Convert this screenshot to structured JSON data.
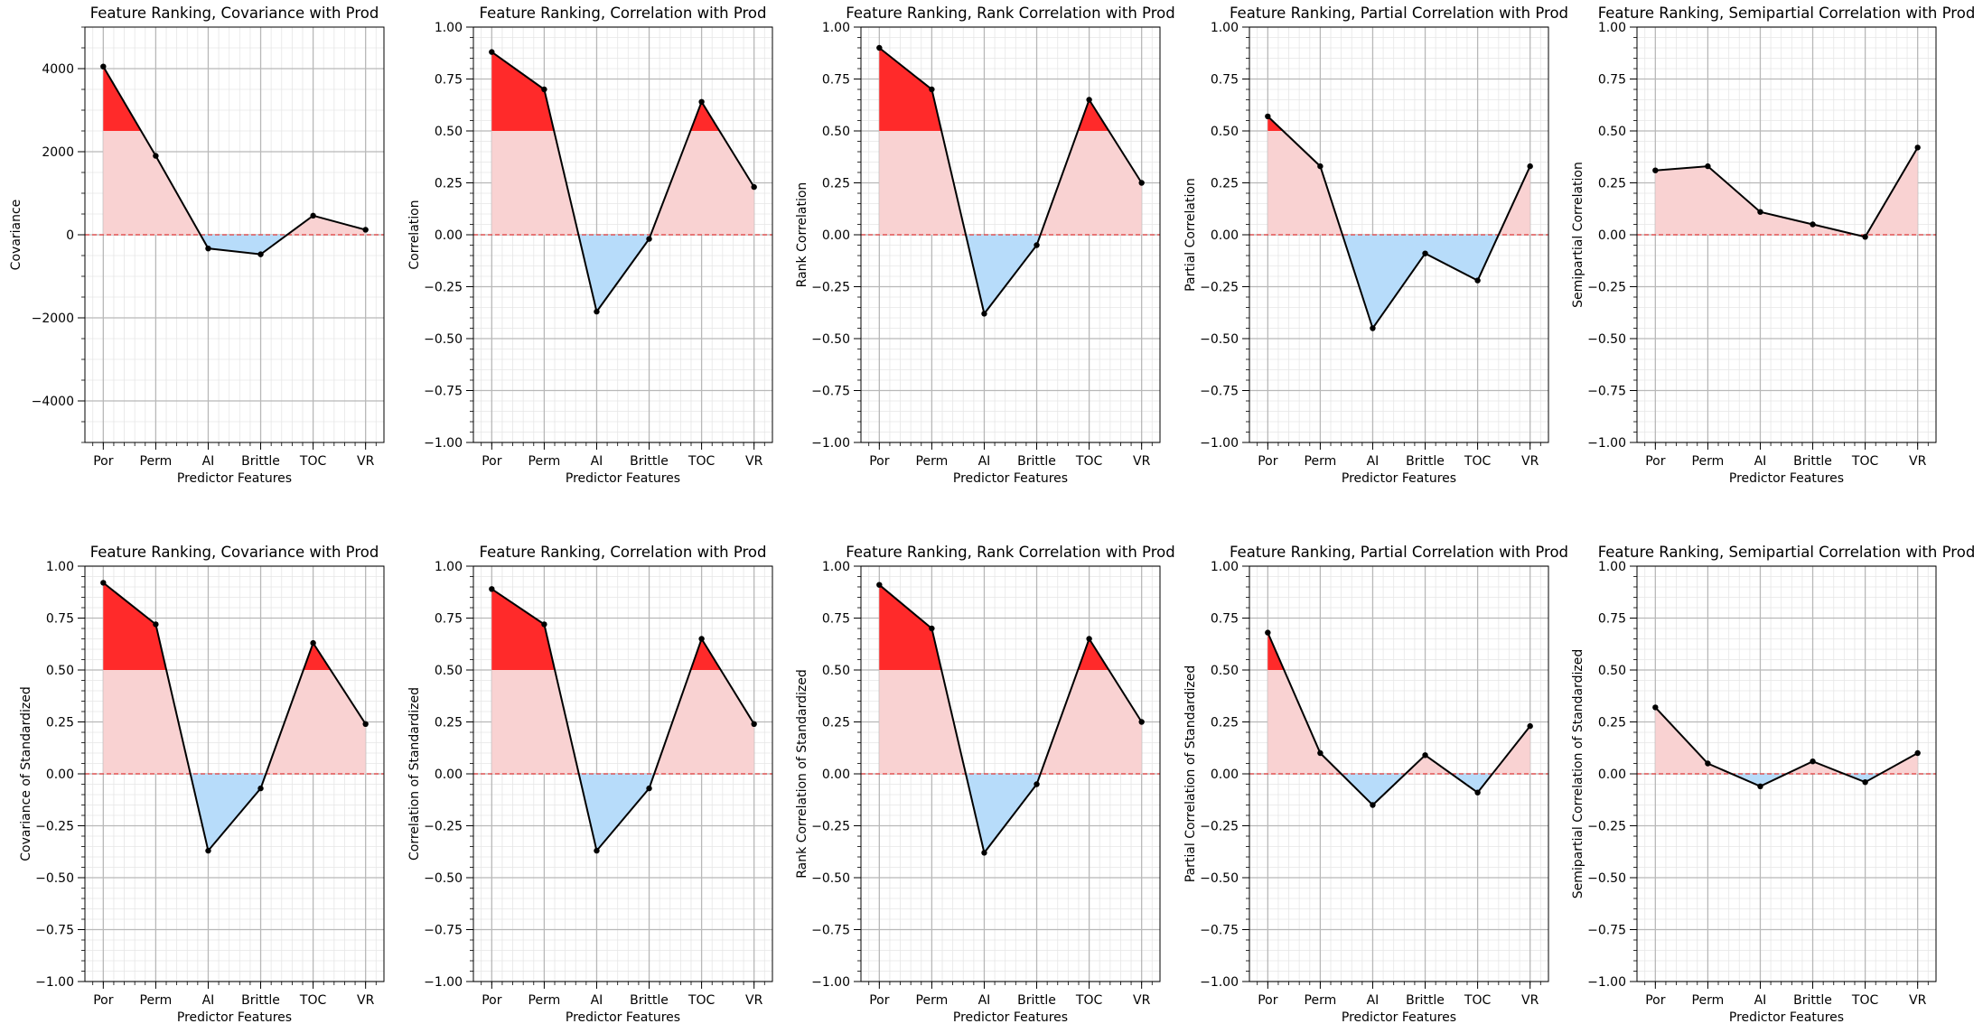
{
  "colors": {
    "strong_fill": "#ff2a2a",
    "weak_fill": "#f9d2d2",
    "negative_fill": "#b7dcfa",
    "line": "#000000",
    "zero_line": "#e03a3a",
    "major_grid": "#b8b8b8",
    "minor_grid": "#e6e6e6"
  },
  "chart_data": [
    {
      "type": "line",
      "title": "Feature Ranking, Covariance with Prod",
      "xlabel": "Predictor Features",
      "ylabel": "Covariance",
      "categories": [
        "Por",
        "Perm",
        "AI",
        "Brittle",
        "TOC",
        "VR"
      ],
      "values": [
        4050,
        1900,
        -330,
        -470,
        460,
        120
      ],
      "ylim": [
        -5000,
        5000
      ],
      "yticks": [
        -4000,
        -2000,
        0,
        2000,
        4000
      ],
      "ytick_labels": [
        "−4000",
        "−2000",
        "0",
        "2000",
        "4000"
      ],
      "minor_step": 500,
      "strong_threshold": 2500
    },
    {
      "type": "line",
      "title": "Feature Ranking, Correlation with Prod",
      "xlabel": "Predictor Features",
      "ylabel": "Correlation",
      "categories": [
        "Por",
        "Perm",
        "AI",
        "Brittle",
        "TOC",
        "VR"
      ],
      "values": [
        0.88,
        0.7,
        -0.37,
        -0.02,
        0.64,
        0.23
      ],
      "ylim": [
        -1,
        1
      ],
      "yticks": [
        -1,
        -0.75,
        -0.5,
        -0.25,
        0,
        0.25,
        0.5,
        0.75,
        1
      ],
      "ytick_labels": [
        "−1.00",
        "−0.75",
        "−0.50",
        "−0.25",
        "0.00",
        "0.25",
        "0.50",
        "0.75",
        "1.00"
      ],
      "minor_step": 0.05,
      "strong_threshold": 0.5
    },
    {
      "type": "line",
      "title": "Feature Ranking, Rank Correlation with Prod",
      "xlabel": "Predictor Features",
      "ylabel": "Rank Correlation",
      "categories": [
        "Por",
        "Perm",
        "AI",
        "Brittle",
        "TOC",
        "VR"
      ],
      "values": [
        0.9,
        0.7,
        -0.38,
        -0.05,
        0.65,
        0.25
      ],
      "ylim": [
        -1,
        1
      ],
      "yticks": [
        -1,
        -0.75,
        -0.5,
        -0.25,
        0,
        0.25,
        0.5,
        0.75,
        1
      ],
      "ytick_labels": [
        "−1.00",
        "−0.75",
        "−0.50",
        "−0.25",
        "0.00",
        "0.25",
        "0.50",
        "0.75",
        "1.00"
      ],
      "minor_step": 0.05,
      "strong_threshold": 0.5
    },
    {
      "type": "line",
      "title": "Feature Ranking, Partial Correlation with Prod",
      "xlabel": "Predictor Features",
      "ylabel": "Partial Correlation",
      "categories": [
        "Por",
        "Perm",
        "AI",
        "Brittle",
        "TOC",
        "VR"
      ],
      "values": [
        0.57,
        0.33,
        -0.45,
        -0.09,
        -0.22,
        0.33
      ],
      "ylim": [
        -1,
        1
      ],
      "yticks": [
        -1,
        -0.75,
        -0.5,
        -0.25,
        0,
        0.25,
        0.5,
        0.75,
        1
      ],
      "ytick_labels": [
        "−1.00",
        "−0.75",
        "−0.50",
        "−0.25",
        "0.00",
        "0.25",
        "0.50",
        "0.75",
        "1.00"
      ],
      "minor_step": 0.05,
      "strong_threshold": 0.5
    },
    {
      "type": "line",
      "title": "Feature Ranking, Semipartial Correlation with Prod",
      "xlabel": "Predictor Features",
      "ylabel": "Semipartial Correlation",
      "categories": [
        "Por",
        "Perm",
        "AI",
        "Brittle",
        "TOC",
        "VR"
      ],
      "values": [
        0.31,
        0.33,
        0.11,
        0.05,
        -0.01,
        0.42
      ],
      "ylim": [
        -1,
        1
      ],
      "yticks": [
        -1,
        -0.75,
        -0.5,
        -0.25,
        0,
        0.25,
        0.5,
        0.75,
        1
      ],
      "ytick_labels": [
        "−1.00",
        "−0.75",
        "−0.50",
        "−0.25",
        "0.00",
        "0.25",
        "0.50",
        "0.75",
        "1.00"
      ],
      "minor_step": 0.05,
      "strong_threshold": 0.5
    },
    {
      "type": "line",
      "title": "Feature Ranking, Covariance with Prod",
      "xlabel": "Predictor Features",
      "ylabel": "Covariance of Standardized",
      "categories": [
        "Por",
        "Perm",
        "AI",
        "Brittle",
        "TOC",
        "VR"
      ],
      "values": [
        0.92,
        0.72,
        -0.37,
        -0.07,
        0.63,
        0.24
      ],
      "ylim": [
        -1,
        1
      ],
      "yticks": [
        -1,
        -0.75,
        -0.5,
        -0.25,
        0,
        0.25,
        0.5,
        0.75,
        1
      ],
      "ytick_labels": [
        "−1.00",
        "−0.75",
        "−0.50",
        "−0.25",
        "0.00",
        "0.25",
        "0.50",
        "0.75",
        "1.00"
      ],
      "minor_step": 0.05,
      "strong_threshold": 0.5
    },
    {
      "type": "line",
      "title": "Feature Ranking, Correlation with Prod",
      "xlabel": "Predictor Features",
      "ylabel": "Correlation of Standardized",
      "categories": [
        "Por",
        "Perm",
        "AI",
        "Brittle",
        "TOC",
        "VR"
      ],
      "values": [
        0.89,
        0.72,
        -0.37,
        -0.07,
        0.65,
        0.24
      ],
      "ylim": [
        -1,
        1
      ],
      "yticks": [
        -1,
        -0.75,
        -0.5,
        -0.25,
        0,
        0.25,
        0.5,
        0.75,
        1
      ],
      "ytick_labels": [
        "−1.00",
        "−0.75",
        "−0.50",
        "−0.25",
        "0.00",
        "0.25",
        "0.50",
        "0.75",
        "1.00"
      ],
      "minor_step": 0.05,
      "strong_threshold": 0.5
    },
    {
      "type": "line",
      "title": "Feature Ranking, Rank Correlation with Prod",
      "xlabel": "Predictor Features",
      "ylabel": "Rank Correlation of Standardized",
      "categories": [
        "Por",
        "Perm",
        "AI",
        "Brittle",
        "TOC",
        "VR"
      ],
      "values": [
        0.91,
        0.7,
        -0.38,
        -0.05,
        0.65,
        0.25
      ],
      "ylim": [
        -1,
        1
      ],
      "yticks": [
        -1,
        -0.75,
        -0.5,
        -0.25,
        0,
        0.25,
        0.5,
        0.75,
        1
      ],
      "ytick_labels": [
        "−1.00",
        "−0.75",
        "−0.50",
        "−0.25",
        "0.00",
        "0.25",
        "0.50",
        "0.75",
        "1.00"
      ],
      "minor_step": 0.05,
      "strong_threshold": 0.5
    },
    {
      "type": "line",
      "title": "Feature Ranking, Partial Correlation with Prod",
      "xlabel": "Predictor Features",
      "ylabel": "Partial Correlation of Standardized",
      "categories": [
        "Por",
        "Perm",
        "AI",
        "Brittle",
        "TOC",
        "VR"
      ],
      "values": [
        0.68,
        0.1,
        -0.15,
        0.09,
        -0.09,
        0.23
      ],
      "ylim": [
        -1,
        1
      ],
      "yticks": [
        -1,
        -0.75,
        -0.5,
        -0.25,
        0,
        0.25,
        0.5,
        0.75,
        1
      ],
      "ytick_labels": [
        "−1.00",
        "−0.75",
        "−0.50",
        "−0.25",
        "0.00",
        "0.25",
        "0.50",
        "0.75",
        "1.00"
      ],
      "minor_step": 0.05,
      "strong_threshold": 0.5
    },
    {
      "type": "line",
      "title": "Feature Ranking, Semipartial Correlation with Prod",
      "xlabel": "Predictor Features",
      "ylabel": "Semipartial Correlation of Standardized",
      "categories": [
        "Por",
        "Perm",
        "AI",
        "Brittle",
        "TOC",
        "VR"
      ],
      "values": [
        0.32,
        0.05,
        -0.06,
        0.06,
        -0.04,
        0.1
      ],
      "ylim": [
        -1,
        1
      ],
      "yticks": [
        -1,
        -0.75,
        -0.5,
        -0.25,
        0,
        0.25,
        0.5,
        0.75,
        1
      ],
      "ytick_labels": [
        "−1.00",
        "−0.75",
        "−0.50",
        "−0.25",
        "0.00",
        "0.25",
        "0.50",
        "0.75",
        "1.00"
      ],
      "minor_step": 0.05,
      "strong_threshold": 0.5
    }
  ]
}
